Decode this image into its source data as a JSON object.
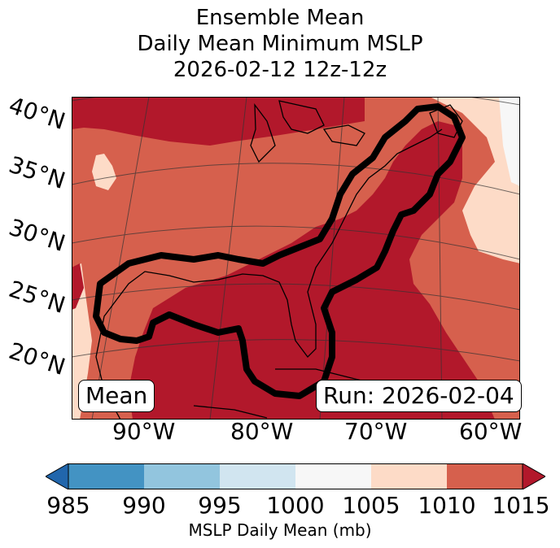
{
  "title": {
    "line1": "Ensemble Mean",
    "line2": "Daily Mean Minimum MSLP",
    "line3": "2026-02-12 12z-12z"
  },
  "map": {
    "lat_labels": [
      "40°N",
      "35°N",
      "30°N",
      "25°N",
      "20°N"
    ],
    "lon_labels": [
      "90°W",
      "80°W",
      "70°W",
      "60°W"
    ],
    "mean_label": "Mean",
    "run_label": "Run: 2026-02-04",
    "contour_color": "#000000",
    "fill_colors": {
      "1015_plus": "#b2182b",
      "1010_1015": "#d6604d",
      "1005_1010": "#fddbc7",
      "1000_1005": "#f7f7f7"
    }
  },
  "colorbar": {
    "ticks": [
      "985",
      "990",
      "995",
      "1000",
      "1005",
      "1010",
      "1015"
    ],
    "label": "MSLP Daily Mean (mb)",
    "bins": [
      {
        "range": "<985",
        "color": "#2166ac"
      },
      {
        "range": "985-990",
        "color": "#4393c3"
      },
      {
        "range": "990-995",
        "color": "#92c5de"
      },
      {
        "range": "995-1000",
        "color": "#d1e5f0"
      },
      {
        "range": "1000-1005",
        "color": "#f7f7f7"
      },
      {
        "range": "1005-1010",
        "color": "#fddbc7"
      },
      {
        "range": "1010-1015",
        "color": "#d6604d"
      },
      {
        "range": ">1015",
        "color": "#b2182b"
      }
    ]
  }
}
